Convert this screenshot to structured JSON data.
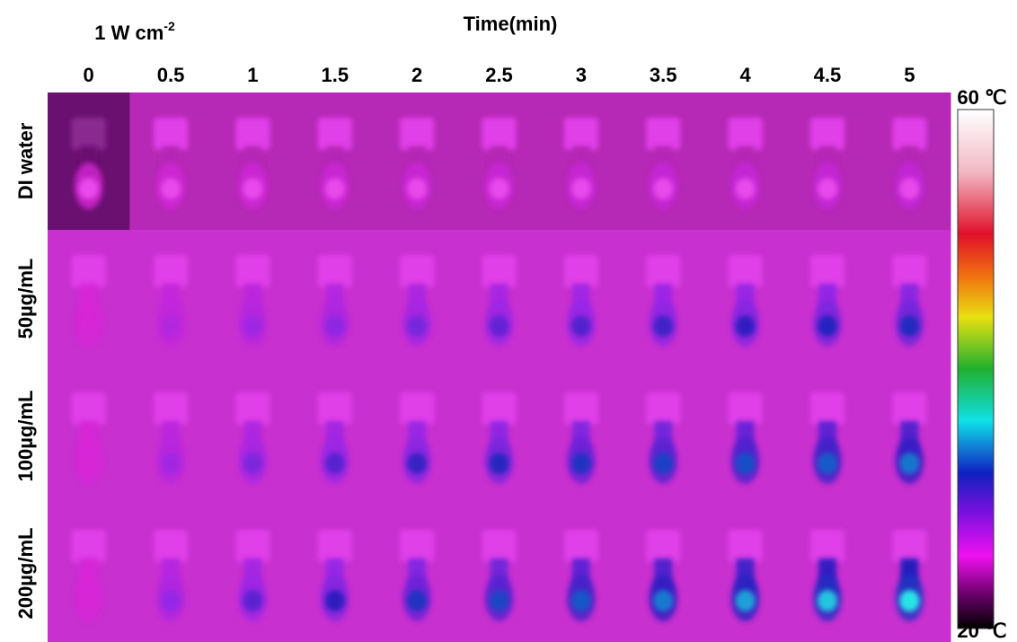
{
  "header": {
    "power": {
      "text": "1 W cm",
      "sup": "-2"
    },
    "axis_title": "Time(min)",
    "times": [
      "0",
      "0.5",
      "1",
      "1.5",
      "2",
      "2.5",
      "3",
      "3.5",
      "4",
      "4.5",
      "5"
    ]
  },
  "rows": [
    "DI water",
    "50µg/mL",
    "100µg/mL",
    "200µg/mL"
  ],
  "colorbar": {
    "max": "60 ℃",
    "min": "20 ℃"
  }
}
